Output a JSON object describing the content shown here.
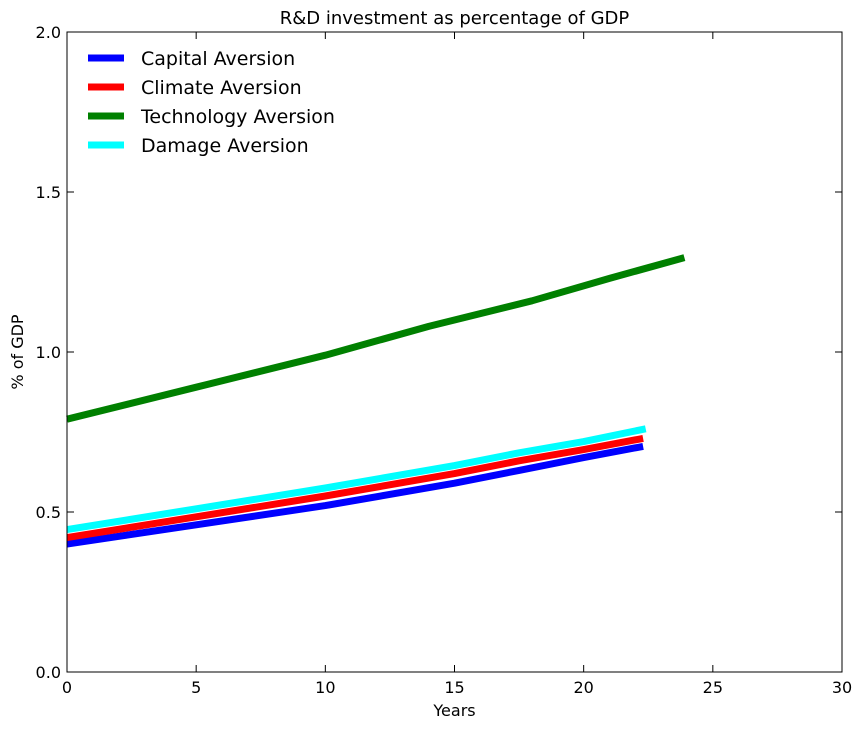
{
  "chart_data": {
    "type": "line",
    "title": "R&D investment as percentage of  GDP",
    "xlabel": "Years",
    "ylabel": "% of GDP",
    "xlim": [
      0,
      30
    ],
    "ylim": [
      0.0,
      2.0
    ],
    "xticks": [
      "0",
      "5",
      "10",
      "15",
      "20",
      "25",
      "30"
    ],
    "yticks": [
      "0.0",
      "0.5",
      "1.0",
      "1.5",
      "2.0"
    ],
    "grid": false,
    "legend_position": "top-left",
    "series": [
      {
        "name": "Capital Aversion",
        "color": "#0000ff",
        "x": [
          0,
          5,
          10,
          15,
          17.5,
          20,
          22.3
        ],
        "y": [
          0.4,
          0.46,
          0.52,
          0.59,
          0.63,
          0.67,
          0.705
        ]
      },
      {
        "name": "Climate Aversion",
        "color": "#ff0000",
        "x": [
          0,
          5,
          10,
          15,
          17.5,
          20,
          22.3
        ],
        "y": [
          0.42,
          0.485,
          0.55,
          0.62,
          0.66,
          0.695,
          0.73
        ]
      },
      {
        "name": "Technology Aversion",
        "color": "#008000",
        "x": [
          0,
          5,
          10,
          14,
          18,
          21,
          23.9
        ],
        "y": [
          0.79,
          0.89,
          0.99,
          1.08,
          1.16,
          1.23,
          1.295
        ]
      },
      {
        "name": "Damage Aversion",
        "color": "#00ffff",
        "x": [
          0,
          5,
          10,
          15,
          17.5,
          20,
          22.4
        ],
        "y": [
          0.445,
          0.51,
          0.575,
          0.645,
          0.685,
          0.72,
          0.76
        ]
      }
    ]
  }
}
